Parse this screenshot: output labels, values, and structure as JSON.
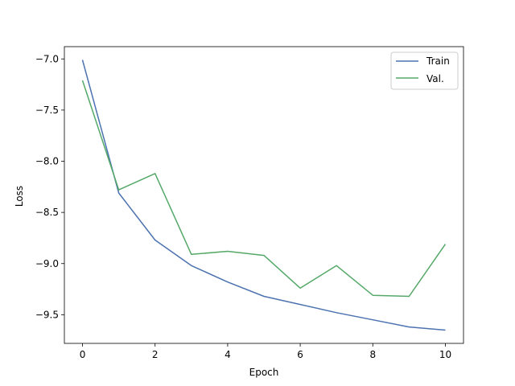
{
  "chart_data": {
    "type": "line",
    "title": "",
    "xlabel": "Epoch",
    "ylabel": "Loss",
    "xlim": [
      -0.5,
      10.5
    ],
    "ylim": [
      -9.78,
      -6.88
    ],
    "xticks": [
      0,
      2,
      4,
      6,
      8,
      10
    ],
    "yticks": [
      -7.0,
      -7.5,
      -8.0,
      -8.5,
      -9.0,
      -9.5
    ],
    "ytick_labels": [
      "−7.0",
      "−7.5",
      "−8.0",
      "−8.5",
      "−9.0",
      "−9.5"
    ],
    "grid": false,
    "legend_position": "top-right",
    "x": [
      0,
      1,
      2,
      3,
      4,
      5,
      6,
      7,
      8,
      9,
      10
    ],
    "series": [
      {
        "name": "Train",
        "color": "#4c72b0",
        "values": [
          -7.01,
          -8.31,
          -8.77,
          -9.02,
          -9.18,
          -9.32,
          -9.4,
          -9.48,
          -9.55,
          -9.62,
          -9.65
        ]
      },
      {
        "name": "Val.",
        "color": "#55a868",
        "values": [
          -7.21,
          -8.28,
          -8.12,
          -8.91,
          -8.88,
          -8.92,
          -9.24,
          -9.02,
          -9.31,
          -9.32,
          -8.81
        ]
      }
    ]
  }
}
